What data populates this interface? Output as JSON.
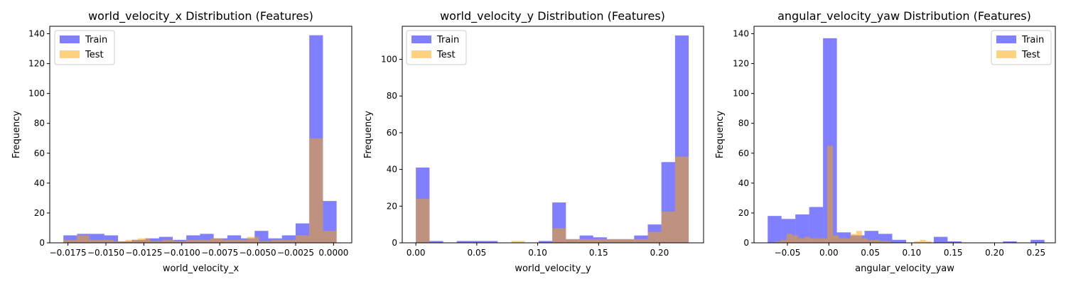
{
  "colors": {
    "train": "#0000ff",
    "test": "#ffa500",
    "axis": "#000000",
    "background": "#ffffff"
  },
  "chart_data": [
    {
      "type": "histogram",
      "title": "world_velocity_x Distribution (Features)",
      "xlabel": "world_velocity_x",
      "ylabel": "Frequency",
      "xlim": [
        -0.0187,
        0.0012
      ],
      "ylim": [
        0,
        145
      ],
      "xticks": [
        -0.0175,
        -0.015,
        -0.0125,
        -0.01,
        -0.0075,
        -0.005,
        -0.0025,
        0.0
      ],
      "xtick_labels": [
        "−0.0175",
        "−0.0150",
        "−0.0125",
        "−0.0100",
        "−0.0075",
        "−0.0050",
        "−0.0025",
        "0.0000"
      ],
      "yticks": [
        0,
        20,
        40,
        60,
        80,
        100,
        120,
        140
      ],
      "ytick_labels": [
        "0",
        "20",
        "40",
        "60",
        "80",
        "100",
        "120",
        "140"
      ],
      "legend": {
        "position": "upper-left",
        "entries": [
          "Train",
          "Test"
        ]
      },
      "series": [
        {
          "name": "Train",
          "bins": [
            [
              -0.0178,
              -0.0169,
              5
            ],
            [
              -0.0169,
              -0.016,
              6
            ],
            [
              -0.016,
              -0.0151,
              6
            ],
            [
              -0.0151,
              -0.0142,
              5
            ],
            [
              -0.0142,
              -0.0133,
              1
            ],
            [
              -0.0133,
              -0.0124,
              2
            ],
            [
              -0.0124,
              -0.0115,
              3
            ],
            [
              -0.0115,
              -0.0106,
              4
            ],
            [
              -0.0106,
              -0.0097,
              2
            ],
            [
              -0.0097,
              -0.0088,
              5
            ],
            [
              -0.0088,
              -0.0079,
              6
            ],
            [
              -0.0079,
              -0.007,
              3
            ],
            [
              -0.007,
              -0.0061,
              5
            ],
            [
              -0.0061,
              -0.0052,
              3
            ],
            [
              -0.0052,
              -0.0043,
              8
            ],
            [
              -0.0043,
              -0.0034,
              3
            ],
            [
              -0.0034,
              -0.0025,
              5
            ],
            [
              -0.0025,
              -0.0016,
              13
            ],
            [
              -0.0016,
              -0.0007,
              139
            ],
            [
              -0.0007,
              0.0002,
              28
            ]
          ]
        },
        {
          "name": "Test",
          "bins": [
            [
              -0.0178,
              -0.0169,
              2
            ],
            [
              -0.0169,
              -0.0161,
              5
            ],
            [
              -0.0161,
              -0.0153,
              2
            ],
            [
              -0.0153,
              -0.0145,
              2
            ],
            [
              -0.0145,
              -0.0137,
              1
            ],
            [
              -0.0137,
              -0.0129,
              2
            ],
            [
              -0.0129,
              -0.0121,
              3
            ],
            [
              -0.0121,
              -0.0113,
              1
            ],
            [
              -0.0113,
              -0.0105,
              2
            ],
            [
              -0.0105,
              -0.0097,
              1
            ],
            [
              -0.0097,
              -0.0089,
              2
            ],
            [
              -0.0089,
              -0.0081,
              2
            ],
            [
              -0.0081,
              -0.0073,
              3
            ],
            [
              -0.0073,
              -0.0065,
              2
            ],
            [
              -0.0065,
              -0.0057,
              2
            ],
            [
              -0.0057,
              -0.0049,
              4
            ],
            [
              -0.0049,
              -0.0041,
              1
            ],
            [
              -0.0041,
              -0.0033,
              2
            ],
            [
              -0.0033,
              -0.0025,
              2
            ],
            [
              -0.0025,
              -0.0016,
              5
            ],
            [
              -0.0016,
              -0.0007,
              70
            ],
            [
              -0.0007,
              0.0002,
              8
            ]
          ]
        }
      ]
    },
    {
      "type": "histogram",
      "title": "world_velocity_y Distribution (Features)",
      "xlabel": "world_velocity_y",
      "ylabel": "Frequency",
      "xlim": [
        -0.0112,
        0.2362
      ],
      "ylim": [
        0,
        118
      ],
      "xticks": [
        0.0,
        0.05,
        0.1,
        0.15,
        0.2
      ],
      "xtick_labels": [
        "0.00",
        "0.05",
        "0.10",
        "0.15",
        "0.20"
      ],
      "yticks": [
        0,
        20,
        40,
        60,
        80,
        100
      ],
      "ytick_labels": [
        "0",
        "20",
        "40",
        "60",
        "80",
        "100"
      ],
      "legend": {
        "position": "upper-left",
        "entries": [
          "Train",
          "Test"
        ]
      },
      "series": [
        {
          "name": "Train",
          "bins": [
            [
              0.0,
              0.0112,
              41
            ],
            [
              0.0112,
              0.0224,
              1
            ],
            [
              0.0224,
              0.0336,
              0
            ],
            [
              0.0336,
              0.0448,
              1
            ],
            [
              0.0448,
              0.056,
              1
            ],
            [
              0.056,
              0.0672,
              1
            ],
            [
              0.0672,
              0.0784,
              0
            ],
            [
              0.0784,
              0.0896,
              0
            ],
            [
              0.0896,
              0.1008,
              0
            ],
            [
              0.1008,
              0.112,
              1
            ],
            [
              0.112,
              0.1232,
              22
            ],
            [
              0.1232,
              0.1344,
              2
            ],
            [
              0.1344,
              0.1456,
              4
            ],
            [
              0.1456,
              0.1568,
              3
            ],
            [
              0.1568,
              0.168,
              2
            ],
            [
              0.168,
              0.1792,
              2
            ],
            [
              0.1792,
              0.1904,
              4
            ],
            [
              0.1904,
              0.2016,
              10
            ],
            [
              0.2016,
              0.2128,
              44
            ],
            [
              0.2128,
              0.224,
              113
            ]
          ]
        },
        {
          "name": "Test",
          "bins": [
            [
              0.0,
              0.0112,
              24
            ],
            [
              0.0112,
              0.0224,
              0
            ],
            [
              0.0224,
              0.0336,
              0
            ],
            [
              0.0336,
              0.0448,
              0
            ],
            [
              0.0448,
              0.056,
              0
            ],
            [
              0.056,
              0.0672,
              0
            ],
            [
              0.0672,
              0.0784,
              0
            ],
            [
              0.0784,
              0.0896,
              1
            ],
            [
              0.0896,
              0.1008,
              0
            ],
            [
              0.1008,
              0.112,
              0
            ],
            [
              0.112,
              0.1232,
              8
            ],
            [
              0.1232,
              0.1344,
              2
            ],
            [
              0.1344,
              0.1456,
              2
            ],
            [
              0.1456,
              0.1568,
              2
            ],
            [
              0.1568,
              0.168,
              2
            ],
            [
              0.168,
              0.1792,
              2
            ],
            [
              0.1792,
              0.1904,
              2
            ],
            [
              0.1904,
              0.2016,
              6
            ],
            [
              0.2016,
              0.2128,
              17
            ],
            [
              0.2128,
              0.224,
              47
            ]
          ]
        }
      ]
    },
    {
      "type": "histogram",
      "title": "angular_velocity_yaw Distribution (Features)",
      "xlabel": "angular_velocity_yaw",
      "ylabel": "Frequency",
      "xlim": [
        -0.0903,
        0.2733
      ],
      "ylim": [
        0,
        145
      ],
      "xticks": [
        -0.05,
        0.0,
        0.05,
        0.1,
        0.15,
        0.2,
        0.25
      ],
      "xtick_labels": [
        "−0.05",
        "0.00",
        "0.05",
        "0.10",
        "0.15",
        "0.20",
        "0.25"
      ],
      "yticks": [
        0,
        20,
        40,
        60,
        80,
        100,
        120,
        140
      ],
      "ytick_labels": [
        "0",
        "20",
        "40",
        "60",
        "80",
        "100",
        "120",
        "140"
      ],
      "legend": {
        "position": "upper-right",
        "entries": [
          "Train",
          "Test"
        ]
      },
      "series": [
        {
          "name": "Train",
          "bins": [
            [
              -0.0738,
              -0.0571,
              18
            ],
            [
              -0.0571,
              -0.0404,
              16
            ],
            [
              -0.0404,
              -0.0237,
              19
            ],
            [
              -0.0237,
              -0.007,
              24
            ],
            [
              -0.007,
              0.0097,
              137
            ],
            [
              0.0097,
              0.0264,
              7
            ],
            [
              0.0264,
              0.0431,
              5
            ],
            [
              0.0431,
              0.0598,
              8
            ],
            [
              0.0598,
              0.0765,
              6
            ],
            [
              0.0765,
              0.0932,
              2
            ],
            [
              0.0932,
              0.1099,
              0
            ],
            [
              0.1099,
              0.1266,
              0
            ],
            [
              0.1266,
              0.1433,
              4
            ],
            [
              0.1433,
              0.16,
              1
            ],
            [
              0.16,
              0.1767,
              0
            ],
            [
              0.1767,
              0.1934,
              0
            ],
            [
              0.1934,
              0.2101,
              0
            ],
            [
              0.2101,
              0.2268,
              1
            ],
            [
              0.2268,
              0.2435,
              0
            ],
            [
              0.2435,
              0.2602,
              2
            ]
          ]
        },
        {
          "name": "Test",
          "bins": [
            [
              -0.065,
              -0.058,
              1
            ],
            [
              -0.058,
              -0.051,
              2
            ],
            [
              -0.051,
              -0.044,
              6
            ],
            [
              -0.044,
              -0.037,
              5
            ],
            [
              -0.037,
              -0.03,
              3
            ],
            [
              -0.03,
              -0.023,
              4
            ],
            [
              -0.023,
              -0.016,
              3
            ],
            [
              -0.016,
              -0.009,
              3
            ],
            [
              -0.009,
              -0.002,
              3
            ],
            [
              -0.002,
              0.005,
              65
            ],
            [
              0.005,
              0.012,
              5
            ],
            [
              0.012,
              0.019,
              3
            ],
            [
              0.019,
              0.026,
              3
            ],
            [
              0.026,
              0.033,
              6
            ],
            [
              0.033,
              0.04,
              8
            ],
            [
              0.04,
              0.047,
              3
            ],
            [
              0.047,
              0.054,
              2
            ],
            [
              0.054,
              0.061,
              2
            ],
            [
              0.061,
              0.068,
              1
            ],
            [
              0.068,
              0.075,
              1
            ],
            [
              0.075,
              0.082,
              0
            ],
            [
              0.082,
              0.089,
              0
            ],
            [
              0.089,
              0.096,
              0
            ],
            [
              0.096,
              0.103,
              0
            ],
            [
              0.103,
              0.11,
              1
            ],
            [
              0.11,
              0.117,
              2
            ],
            [
              0.117,
              0.124,
              1
            ]
          ]
        }
      ]
    }
  ]
}
